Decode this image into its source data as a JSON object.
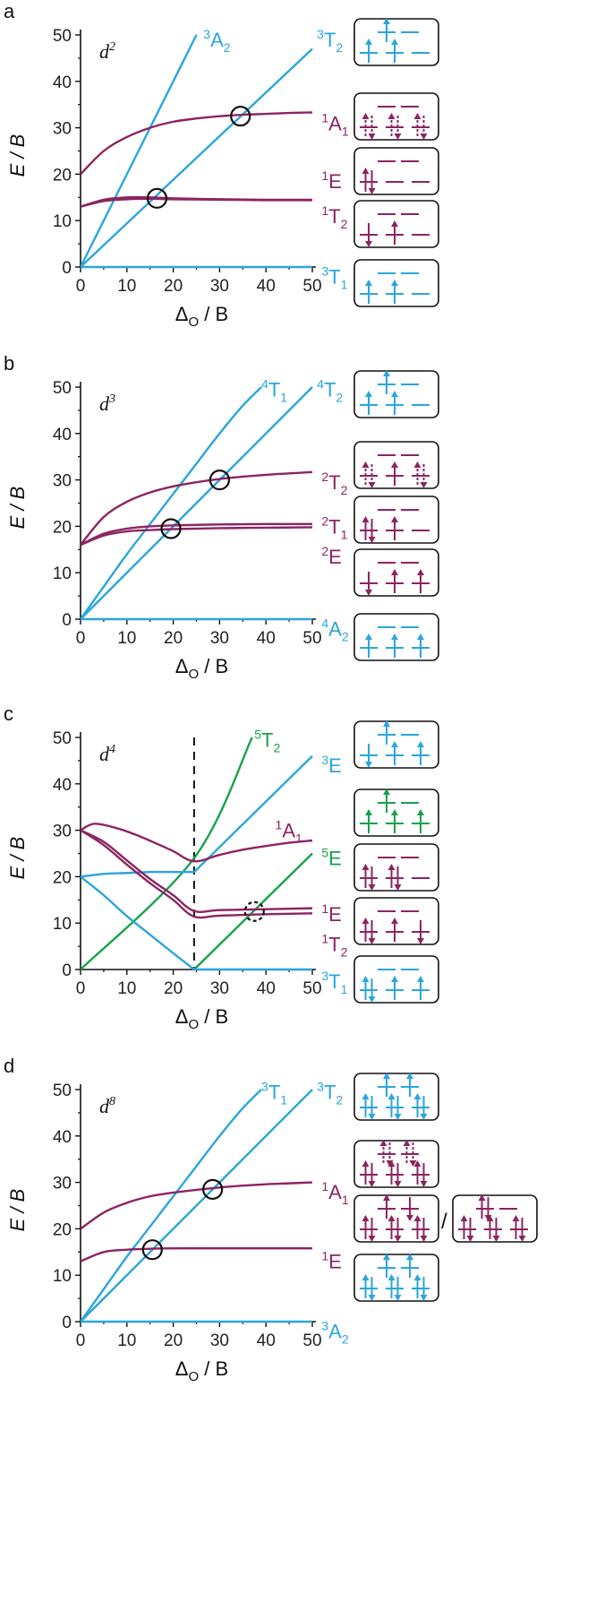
{
  "colors": {
    "triplet": "#2aa6dc",
    "singlet": "#8c2462",
    "quintet": "#16a34a",
    "axis": "#111111"
  },
  "chart_data": [
    {
      "type": "line",
      "panel": "a",
      "config_base": "d",
      "config_sup": "2",
      "xlabel": "Δ",
      "xlabel_sub": "O",
      "xlabel_tail": " / B",
      "ylabel": "E / B",
      "xlim": [
        0,
        50
      ],
      "ylim": [
        0,
        50
      ],
      "xticks": [
        "0",
        "10",
        "20",
        "30",
        "40",
        "50"
      ],
      "yticks": [
        "0",
        "10",
        "20",
        "30",
        "40",
        "50"
      ],
      "series": [
        {
          "name": "3A2",
          "color": "triplet",
          "x": [
            0,
            25
          ],
          "y": [
            0,
            50
          ]
        },
        {
          "name": "3T2",
          "color": "triplet",
          "x": [
            0,
            50
          ],
          "y": [
            0,
            47
          ]
        },
        {
          "name": "3T1",
          "color": "triplet",
          "x": [
            0,
            50
          ],
          "y": [
            0,
            0
          ]
        },
        {
          "name": "1A1",
          "color": "singlet",
          "x": [
            0,
            5,
            10,
            15,
            20,
            25,
            30,
            35,
            40,
            45,
            50
          ],
          "y": [
            20,
            25,
            28,
            30,
            31.3,
            32,
            32.5,
            32.8,
            33,
            33.2,
            33.3
          ]
        },
        {
          "name": "1E",
          "color": "singlet",
          "x": [
            0,
            5,
            10,
            15,
            20,
            30,
            40,
            50
          ],
          "y": [
            13,
            14.5,
            15,
            15,
            14.8,
            14.6,
            14.5,
            14.5
          ]
        },
        {
          "name": "1T2",
          "color": "singlet",
          "x": [
            0,
            5,
            10,
            15,
            20,
            30,
            40,
            50
          ],
          "y": [
            13,
            14.2,
            14.6,
            14.7,
            14.6,
            14.5,
            14.4,
            14.4
          ]
        }
      ],
      "circles": [
        {
          "x": 16.5,
          "y": 14.8,
          "dashed": false
        },
        {
          "x": 34.5,
          "y": 32.5,
          "dashed": false
        }
      ],
      "labels": [
        {
          "base": "A",
          "sup": "3",
          "sub": "2",
          "color": "triplet",
          "x": 26.5,
          "y": 49
        },
        {
          "base": "T",
          "sup": "3",
          "sub": "2",
          "color": "triplet",
          "x": 51,
          "y": 49
        },
        {
          "base": "A",
          "sup": "1",
          "sub": "1",
          "color": "singlet",
          "x": 52,
          "y": 31
        },
        {
          "base": "E",
          "sup": "1",
          "sub": "",
          "color": "singlet",
          "x": 52,
          "y": 18.5
        },
        {
          "base": "T",
          "sup": "1",
          "sub": "2",
          "color": "singlet",
          "x": 52,
          "y": 11
        },
        {
          "base": "T",
          "sup": "3",
          "sub": "1",
          "color": "triplet",
          "x": 52,
          "y": -2
        }
      ],
      "boxes": [
        {
          "color": "triplet",
          "eg": [
            1,
            0
          ],
          "t2g": [
            1,
            1,
            0
          ]
        },
        {
          "color": "singlet",
          "eg": [
            0,
            0
          ],
          "t2g": [
            3,
            3,
            3
          ]
        },
        {
          "color": "singlet",
          "eg": [
            0,
            0
          ],
          "t2g": [
            2,
            0,
            0
          ]
        },
        {
          "color": "singlet",
          "eg": [
            0,
            0
          ],
          "t2g": [
            -1,
            1,
            0
          ]
        },
        {
          "color": "triplet",
          "eg": [
            0,
            0
          ],
          "t2g": [
            1,
            1,
            0
          ]
        }
      ]
    },
    {
      "type": "line",
      "panel": "b",
      "config_base": "d",
      "config_sup": "3",
      "xlabel": "Δ",
      "xlabel_sub": "O",
      "xlabel_tail": " / B",
      "ylabel": "E / B",
      "xlim": [
        0,
        50
      ],
      "ylim": [
        0,
        50
      ],
      "xticks": [
        "0",
        "10",
        "20",
        "30",
        "40",
        "50"
      ],
      "yticks": [
        "0",
        "10",
        "20",
        "30",
        "40",
        "50"
      ],
      "series": [
        {
          "name": "4T1",
          "color": "triplet",
          "x": [
            0,
            5,
            10,
            15,
            20,
            25,
            30,
            35,
            39
          ],
          "y": [
            0,
            7,
            14,
            20.5,
            27,
            33.5,
            40,
            46,
            50
          ]
        },
        {
          "name": "4T2",
          "color": "triplet",
          "x": [
            0,
            50
          ],
          "y": [
            0,
            50
          ]
        },
        {
          "name": "4A2",
          "color": "triplet",
          "x": [
            0,
            50
          ],
          "y": [
            0,
            0
          ]
        },
        {
          "name": "2T2",
          "color": "singlet",
          "x": [
            0,
            5,
            10,
            15,
            20,
            25,
            30,
            35,
            40,
            45,
            50
          ],
          "y": [
            16,
            22,
            25.3,
            27.3,
            28.6,
            29.5,
            30.2,
            30.7,
            31.1,
            31.4,
            31.7
          ]
        },
        {
          "name": "2T1",
          "color": "singlet",
          "x": [
            0,
            5,
            10,
            15,
            20,
            30,
            40,
            50
          ],
          "y": [
            16,
            18.4,
            19.5,
            20,
            20.2,
            20.4,
            20.5,
            20.5
          ]
        },
        {
          "name": "2E",
          "color": "singlet",
          "x": [
            0,
            5,
            10,
            15,
            20,
            30,
            40,
            50
          ],
          "y": [
            16,
            18,
            18.9,
            19.2,
            19.4,
            19.6,
            19.7,
            19.8
          ]
        }
      ],
      "circles": [
        {
          "x": 19.5,
          "y": 19.5,
          "dashed": false
        },
        {
          "x": 30,
          "y": 30,
          "dashed": false
        }
      ],
      "labels": [
        {
          "base": "T",
          "sup": "4",
          "sub": "1",
          "color": "triplet",
          "x": 39,
          "y": 49.5
        },
        {
          "base": "T",
          "sup": "4",
          "sub": "2",
          "color": "triplet",
          "x": 51,
          "y": 49.5
        },
        {
          "base": "T",
          "sup": "2",
          "sub": "2",
          "color": "singlet",
          "x": 52,
          "y": 29.5
        },
        {
          "base": "T",
          "sup": "2",
          "sub": "1",
          "color": "singlet",
          "x": 52,
          "y": 20
        },
        {
          "base": "E",
          "sup": "2",
          "sub": "",
          "color": "singlet",
          "x": 52,
          "y": 13.5
        },
        {
          "base": "A",
          "sup": "4",
          "sub": "2",
          "color": "triplet",
          "x": 52,
          "y": -2
        }
      ],
      "boxes": [
        {
          "color": "triplet",
          "eg": [
            1,
            0
          ],
          "t2g": [
            1,
            1,
            0
          ]
        },
        {
          "color": "singlet",
          "eg": [
            0,
            0
          ],
          "t2g": [
            3,
            1,
            3
          ]
        },
        {
          "color": "singlet",
          "eg": [
            0,
            0
          ],
          "t2g": [
            2,
            1,
            0
          ]
        },
        {
          "color": "singlet",
          "eg": [
            0,
            0
          ],
          "t2g": [
            -1,
            1,
            1
          ]
        },
        {
          "color": "triplet",
          "eg": [
            0,
            0
          ],
          "t2g": [
            1,
            1,
            1
          ]
        }
      ]
    },
    {
      "type": "line",
      "panel": "c",
      "config_base": "d",
      "config_sup": "4",
      "xlabel": "Δ",
      "xlabel_sub": "O",
      "xlabel_tail": " / B",
      "ylabel": "E / B",
      "xlim": [
        0,
        50
      ],
      "ylim": [
        0,
        50
      ],
      "xticks": [
        "0",
        "10",
        "20",
        "30",
        "40",
        "50"
      ],
      "yticks": [
        "0",
        "10",
        "20",
        "30",
        "40",
        "50"
      ],
      "vline": 24.5,
      "series": [
        {
          "name": "5T2",
          "color": "quintet",
          "x": [
            0,
            24.5,
            37
          ],
          "y": [
            0,
            24,
            50
          ]
        },
        {
          "name": "5E",
          "color": "quintet",
          "x": [
            24.5,
            50
          ],
          "y": [
            0,
            25
          ]
        },
        {
          "name": "3E",
          "color": "triplet",
          "x": [
            24.5,
            50
          ],
          "y": [
            21,
            46
          ]
        },
        {
          "name": "3T1-high",
          "color": "triplet",
          "x": [
            0,
            5,
            10,
            15,
            20,
            24.5
          ],
          "y": [
            20,
            20.6,
            20.8,
            21,
            21,
            21
          ]
        },
        {
          "name": "3T1-low",
          "color": "triplet",
          "x": [
            0,
            5,
            10,
            15,
            20,
            24.5
          ],
          "y": [
            20,
            16,
            11.5,
            7.5,
            3.5,
            0
          ]
        },
        {
          "name": "3T1-base",
          "color": "triplet",
          "x": [
            24.5,
            50
          ],
          "y": [
            0,
            0
          ]
        },
        {
          "name": "1A1",
          "color": "singlet",
          "x": [
            0,
            3,
            8,
            12,
            16,
            20,
            24.5,
            30,
            35,
            40,
            45,
            50
          ],
          "y": [
            30,
            31.4,
            30.4,
            29,
            27.3,
            25.5,
            23.3,
            24.7,
            25.8,
            26.6,
            27.3,
            27.8
          ]
        },
        {
          "name": "1E",
          "color": "singlet",
          "x": [
            0,
            5,
            10,
            15,
            20,
            24.5,
            30,
            40,
            50
          ],
          "y": [
            30,
            27.5,
            23.5,
            19.5,
            16,
            12.6,
            12.8,
            13,
            13.2
          ]
        },
        {
          "name": "1T2",
          "color": "singlet",
          "x": [
            0,
            5,
            10,
            15,
            20,
            24.5,
            30,
            40,
            50
          ],
          "y": [
            30,
            26.8,
            22.6,
            18.6,
            15,
            11.4,
            11.6,
            11.9,
            12.1
          ]
        }
      ],
      "circles": [
        {
          "x": 37.5,
          "y": 12.5,
          "dashed": true
        }
      ],
      "labels": [
        {
          "base": "T",
          "sup": "5",
          "sub": "2",
          "color": "quintet",
          "x": 37.5,
          "y": 49.5
        },
        {
          "base": "E",
          "sup": "3",
          "sub": "",
          "color": "triplet",
          "x": 52,
          "y": 44
        },
        {
          "base": "A",
          "sup": "1",
          "sub": "1",
          "color": "singlet",
          "x": 42,
          "y": 30
        },
        {
          "base": "E",
          "sup": "5",
          "sub": "",
          "color": "quintet",
          "x": 52,
          "y": 24
        },
        {
          "base": "E",
          "sup": "1",
          "sub": "",
          "color": "singlet",
          "x": 52,
          "y": 12
        },
        {
          "base": "T",
          "sup": "1",
          "sub": "2",
          "color": "singlet",
          "x": 52,
          "y": 5.5
        },
        {
          "base": "T",
          "sup": "3",
          "sub": "1",
          "color": "triplet",
          "x": 52,
          "y": -2.5
        }
      ],
      "boxes": [
        {
          "color": "triplet",
          "eg": [
            1,
            0
          ],
          "t2g": [
            -1,
            1,
            1
          ]
        },
        {
          "color": "quintet",
          "eg": [
            1,
            0
          ],
          "t2g": [
            1,
            1,
            1
          ]
        },
        {
          "color": "singlet",
          "eg": [
            0,
            0
          ],
          "t2g": [
            2,
            2,
            0
          ]
        },
        {
          "color": "singlet",
          "eg": [
            0,
            0
          ],
          "t2g": [
            2,
            1,
            -1
          ]
        },
        {
          "color": "triplet",
          "eg": [
            0,
            0
          ],
          "t2g": [
            2,
            1,
            1
          ]
        }
      ]
    },
    {
      "type": "line",
      "panel": "d",
      "config_base": "d",
      "config_sup": "8",
      "xlabel": "Δ",
      "xlabel_sub": "O",
      "xlabel_tail": " / B",
      "ylabel": "E / B",
      "xlim": [
        0,
        50
      ],
      "ylim": [
        0,
        50
      ],
      "xticks": [
        "0",
        "10",
        "20",
        "30",
        "40",
        "50"
      ],
      "yticks": [
        "0",
        "10",
        "20",
        "30",
        "40",
        "50"
      ],
      "series": [
        {
          "name": "3T1",
          "color": "triplet",
          "x": [
            0,
            5,
            10,
            15,
            20,
            25,
            30,
            35,
            39
          ],
          "y": [
            0,
            7,
            14,
            20.5,
            27,
            33.5,
            40,
            46,
            50
          ]
        },
        {
          "name": "3T2",
          "color": "triplet",
          "x": [
            0,
            50
          ],
          "y": [
            0,
            50
          ]
        },
        {
          "name": "3A2",
          "color": "triplet",
          "x": [
            0,
            50
          ],
          "y": [
            0,
            0
          ]
        },
        {
          "name": "1A1",
          "color": "singlet",
          "x": [
            0,
            5,
            10,
            15,
            20,
            25,
            30,
            35,
            40,
            45,
            50
          ],
          "y": [
            20,
            23.5,
            25.6,
            27,
            27.8,
            28.4,
            28.9,
            29.3,
            29.6,
            29.8,
            30
          ]
        },
        {
          "name": "1E",
          "color": "singlet",
          "x": [
            0,
            5,
            10,
            15,
            20,
            30,
            40,
            50
          ],
          "y": [
            13,
            15,
            15.5,
            15.7,
            15.8,
            15.8,
            15.8,
            15.8
          ]
        }
      ],
      "circles": [
        {
          "x": 15.5,
          "y": 15.5,
          "dashed": false
        },
        {
          "x": 28.5,
          "y": 28.5,
          "dashed": false
        }
      ],
      "labels": [
        {
          "base": "T",
          "sup": "3",
          "sub": "1",
          "color": "triplet",
          "x": 39,
          "y": 49.5
        },
        {
          "base": "T",
          "sup": "3",
          "sub": "2",
          "color": "triplet",
          "x": 51,
          "y": 49.5
        },
        {
          "base": "A",
          "sup": "1",
          "sub": "1",
          "color": "singlet",
          "x": 52,
          "y": 28
        },
        {
          "base": "E",
          "sup": "1",
          "sub": "",
          "color": "singlet",
          "x": 52,
          "y": 13
        },
        {
          "base": "A",
          "sup": "3",
          "sub": "2",
          "color": "triplet",
          "x": 52,
          "y": -2
        }
      ],
      "boxes": [
        {
          "color": "triplet",
          "eg": [
            1,
            1
          ],
          "t2g": [
            2,
            2,
            2
          ]
        },
        {
          "color": "singlet",
          "eg": [
            3,
            3
          ],
          "t2g": [
            2,
            2,
            2
          ]
        },
        {
          "color": "singlet",
          "eg": [
            1,
            -1
          ],
          "t2g": [
            2,
            2,
            2
          ]
        },
        {
          "color": "triplet",
          "eg": [
            1,
            1
          ],
          "t2g": [
            2,
            2,
            2
          ]
        }
      ],
      "extra_box": {
        "color": "singlet",
        "eg": [
          2,
          0
        ],
        "t2g": [
          2,
          2,
          2
        ]
      },
      "extra_separator": "/"
    }
  ]
}
